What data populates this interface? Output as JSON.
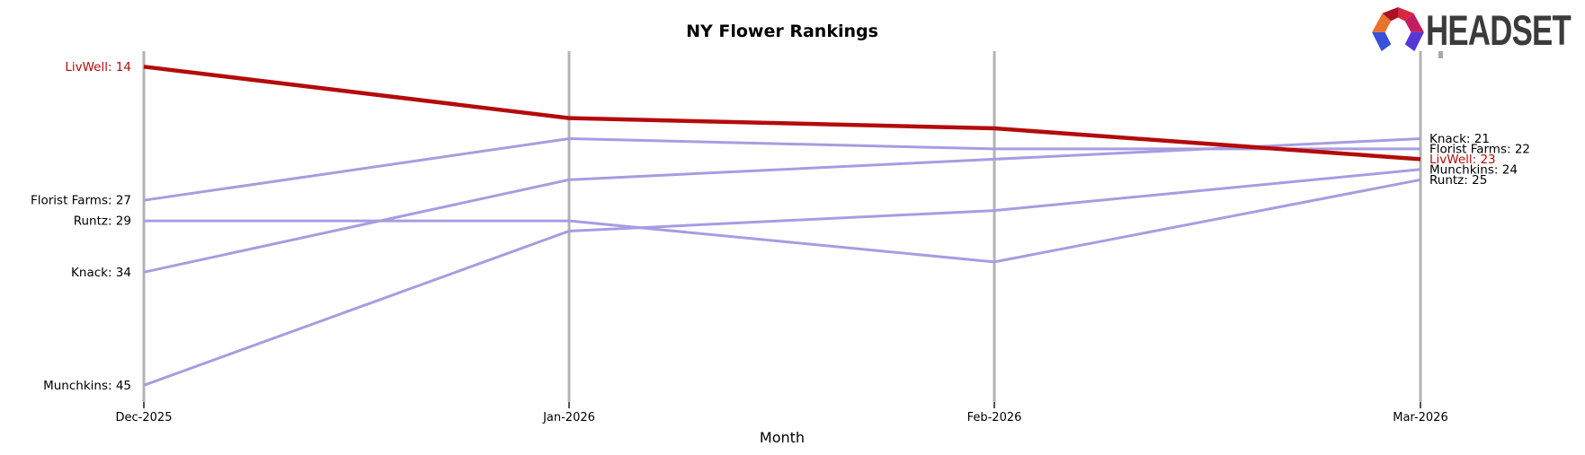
{
  "logo": {
    "text": "HEADSET"
  },
  "colors": {
    "highlight_line": "#b40b0b",
    "normal_line": "#a89ce1",
    "gridline": "#b3b3b3",
    "text": "#000000",
    "logo_text": "#3b3b3b"
  },
  "chart_data": {
    "type": "line",
    "subtype": "bump-ranking-chart",
    "title": "NY Flower Rankings",
    "xlabel": "Month",
    "x": [
      "Dec-2025",
      "Jan-2026",
      "Feb-2026",
      "Mar-2026"
    ],
    "series": [
      {
        "name": "Florist Farms",
        "values": [
          27,
          21,
          22,
          22
        ],
        "color": "#a89ce1",
        "highlight": false,
        "label_start": "Florist Farms: 27",
        "label_end": "Florist Farms: 22"
      },
      {
        "name": "Runtz",
        "values": [
          29,
          29,
          33,
          25
        ],
        "color": "#a89ce1",
        "highlight": false,
        "label_start": "Runtz: 29",
        "label_end": "Runtz: 25"
      },
      {
        "name": "Knack",
        "values": [
          34,
          25,
          23,
          21
        ],
        "color": "#a89ce1",
        "highlight": false,
        "label_start": "Knack: 34",
        "label_end": "Knack: 21"
      },
      {
        "name": "Munchkins",
        "values": [
          45,
          30,
          28,
          24
        ],
        "color": "#a89ce1",
        "highlight": false,
        "label_start": "Munchkins: 45",
        "label_end": "Munchkins: 24"
      },
      {
        "name": "LivWell",
        "values": [
          14,
          19,
          20,
          23
        ],
        "color": "#b40b0b",
        "highlight": true,
        "label_start": "LivWell: 14",
        "label_end": "LivWell: 23"
      }
    ],
    "ylim": [
      14,
      45
    ],
    "y_axis_inverted": true,
    "legend_position": "none",
    "grid": "vertical-gridlines-only"
  }
}
